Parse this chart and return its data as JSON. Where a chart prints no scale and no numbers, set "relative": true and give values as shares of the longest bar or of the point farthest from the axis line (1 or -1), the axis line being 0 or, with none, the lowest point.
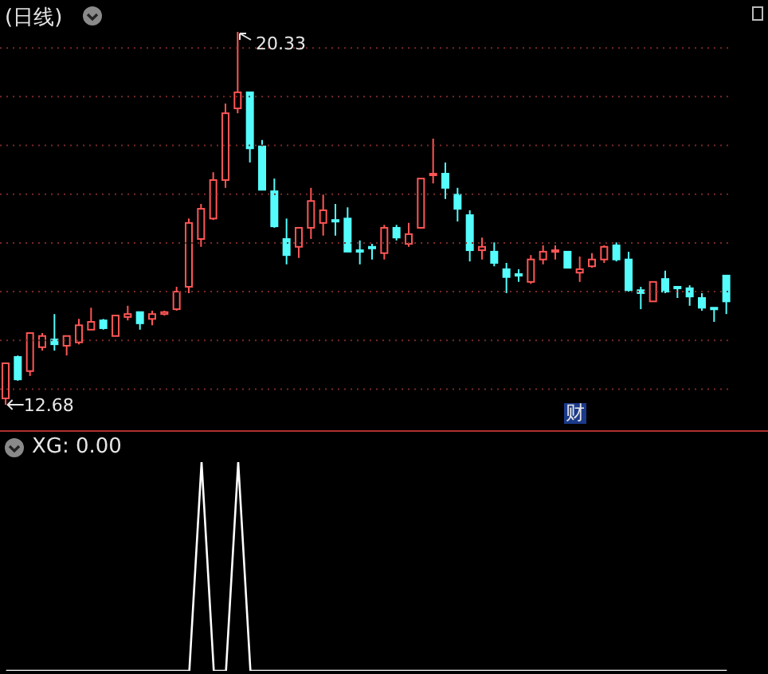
{
  "chart_data": [
    {
      "type": "candlestick",
      "title": "(日线)",
      "categories": [
        null,
        null,
        null,
        null,
        null,
        null,
        null,
        null,
        null,
        null,
        null,
        null,
        null,
        null,
        null,
        null,
        null,
        null,
        null,
        null,
        null,
        null,
        null,
        null,
        null,
        null,
        null,
        null,
        null,
        null,
        null,
        null,
        null,
        null,
        null,
        null,
        null,
        null,
        null,
        null,
        null,
        null,
        null,
        null,
        null,
        null,
        null,
        null,
        null,
        null,
        null,
        null,
        null,
        null,
        null,
        null,
        null,
        null,
        null,
        null
      ],
      "ohlc": [
        [
          12.81,
          13.53,
          12.68,
          13.53
        ],
        [
          13.66,
          13.69,
          13.17,
          13.2
        ],
        [
          13.37,
          14.15,
          13.27,
          14.15
        ],
        [
          13.86,
          14.15,
          13.79,
          14.09
        ],
        [
          14.02,
          14.54,
          13.79,
          13.92
        ],
        [
          13.89,
          14.09,
          13.69,
          14.09
        ],
        [
          13.96,
          14.44,
          13.92,
          14.31
        ],
        [
          14.22,
          14.67,
          14.22,
          14.38
        ],
        [
          14.41,
          14.44,
          14.22,
          14.25
        ],
        [
          14.09,
          14.51,
          14.09,
          14.51
        ],
        [
          14.48,
          14.71,
          14.41,
          14.54
        ],
        [
          14.58,
          14.58,
          14.22,
          14.35
        ],
        [
          14.44,
          14.61,
          14.31,
          14.54
        ],
        [
          14.54,
          14.61,
          14.51,
          14.58
        ],
        [
          14.64,
          15.1,
          14.61,
          15.0
        ],
        [
          15.1,
          16.5,
          14.97,
          16.41
        ],
        [
          16.08,
          16.8,
          15.92,
          16.7
        ],
        [
          16.5,
          17.45,
          16.47,
          17.29
        ],
        [
          17.29,
          18.86,
          17.13,
          18.66
        ],
        [
          18.76,
          20.33,
          18.66,
          19.09
        ],
        [
          19.09,
          19.09,
          17.65,
          17.94
        ],
        [
          17.98,
          18.11,
          17.09,
          17.09
        ],
        [
          17.06,
          17.32,
          16.31,
          16.34
        ],
        [
          16.08,
          16.5,
          15.56,
          15.75
        ],
        [
          15.92,
          16.31,
          15.69,
          16.31
        ],
        [
          16.31,
          17.13,
          16.08,
          16.86
        ],
        [
          16.41,
          16.99,
          16.15,
          16.67
        ],
        [
          16.47,
          16.8,
          16.15,
          16.44
        ],
        [
          16.5,
          16.73,
          15.82,
          15.82
        ],
        [
          15.85,
          16.05,
          15.56,
          15.82
        ],
        [
          15.92,
          15.98,
          15.66,
          15.89
        ],
        [
          15.79,
          16.37,
          15.66,
          16.31
        ],
        [
          16.31,
          16.37,
          16.05,
          16.11
        ],
        [
          15.98,
          16.41,
          15.92,
          16.18
        ],
        [
          16.31,
          17.32,
          16.31,
          17.32
        ],
        [
          17.39,
          18.14,
          17.22,
          17.42
        ],
        [
          17.42,
          17.65,
          16.9,
          17.13
        ],
        [
          16.99,
          17.13,
          16.44,
          16.7
        ],
        [
          16.57,
          16.67,
          15.62,
          15.85
        ],
        [
          15.85,
          16.11,
          15.66,
          15.92
        ],
        [
          15.82,
          16.01,
          15.52,
          15.59
        ],
        [
          15.46,
          15.59,
          14.97,
          15.3
        ],
        [
          15.36,
          15.46,
          15.2,
          15.33
        ],
        [
          15.2,
          15.75,
          15.16,
          15.66
        ],
        [
          15.66,
          15.95,
          15.56,
          15.82
        ],
        [
          15.82,
          15.95,
          15.66,
          15.85
        ],
        [
          15.82,
          15.82,
          15.49,
          15.49
        ],
        [
          15.39,
          15.72,
          15.2,
          15.46
        ],
        [
          15.52,
          15.79,
          15.49,
          15.66
        ],
        [
          15.66,
          15.95,
          15.59,
          15.92
        ],
        [
          15.95,
          16.01,
          15.62,
          15.66
        ],
        [
          15.66,
          15.82,
          15.0,
          15.03
        ],
        [
          15.03,
          15.1,
          14.64,
          14.97
        ],
        [
          14.8,
          15.2,
          14.8,
          15.2
        ],
        [
          15.26,
          15.43,
          14.97,
          15.0
        ],
        [
          15.1,
          15.1,
          14.87,
          15.07
        ],
        [
          15.07,
          15.13,
          14.71,
          14.9
        ],
        [
          14.87,
          14.97,
          14.61,
          14.67
        ],
        [
          14.67,
          14.67,
          14.38,
          14.64
        ],
        [
          15.33,
          15.33,
          14.54,
          14.8
        ]
      ],
      "colors": [
        "#ff5555",
        "#54fcfc",
        "#ff5555",
        "#ff5555",
        "#54fcfc",
        "#ff5555",
        "#ff5555",
        "#ff5555",
        "#54fcfc",
        "#ff5555",
        "#ff5555",
        "#54fcfc",
        "#ff5555",
        "#ff5555",
        "#ff5555",
        "#ff5555",
        "#ff5555",
        "#ff5555",
        "#ff5555",
        "#ff5555",
        "#54fcfc",
        "#54fcfc",
        "#54fcfc",
        "#54fcfc",
        "#ff5555",
        "#ff5555",
        "#ff5555",
        "#54fcfc",
        "#54fcfc",
        "#54fcfc",
        "#54fcfc",
        "#ff5555",
        "#54fcfc",
        "#ff5555",
        "#ff5555",
        "#ff5555",
        "#54fcfc",
        "#54fcfc",
        "#54fcfc",
        "#ff5555",
        "#54fcfc",
        "#54fcfc",
        "#54fcfc",
        "#ff5555",
        "#ff5555",
        "#ff5555",
        "#54fcfc",
        "#ff5555",
        "#ff5555",
        "#ff5555",
        "#54fcfc",
        "#54fcfc",
        "#54fcfc",
        "#ff5555",
        "#54fcfc",
        "#54fcfc",
        "#54fcfc",
        "#54fcfc",
        "#54fcfc",
        "#54fcfc"
      ],
      "yticks": [
        {
          "value": 13,
          "label": null
        },
        {
          "value": 14,
          "label": null
        },
        {
          "value": 15,
          "label": null
        },
        {
          "value": 16,
          "label": null
        },
        {
          "value": 17,
          "label": null
        },
        {
          "value": 18,
          "label": null
        },
        {
          "value": 19,
          "label": null
        },
        {
          "value": 20,
          "label": null
        }
      ],
      "grid": "y",
      "annotations": [
        "20.33",
        "12.68",
        "财"
      ]
    },
    {
      "type": "line",
      "title": "XG: 0.00",
      "categories": [
        null,
        null,
        null,
        null,
        null,
        null,
        null,
        null,
        null,
        null,
        null,
        null,
        null,
        null,
        null,
        null,
        null,
        null,
        null,
        null,
        null,
        null,
        null,
        null,
        null,
        null,
        null,
        null,
        null,
        null,
        null,
        null,
        null,
        null,
        null,
        null,
        null,
        null,
        null,
        null,
        null,
        null,
        null,
        null,
        null,
        null,
        null,
        null,
        null,
        null,
        null,
        null,
        null,
        null,
        null,
        null,
        null,
        null,
        null,
        null
      ],
      "series": [
        {
          "color": "#ffffff",
          "values": [
            0,
            0,
            0,
            0,
            0,
            0,
            0,
            0,
            0,
            0,
            0,
            0,
            0,
            0,
            0,
            0,
            1,
            0,
            0,
            1,
            0,
            0,
            0,
            0,
            0,
            0,
            0,
            0,
            0,
            0,
            0,
            0,
            0,
            0,
            0,
            0,
            0,
            0,
            0,
            0,
            0,
            0,
            0,
            0,
            0,
            0,
            0,
            0,
            0,
            0,
            0,
            0,
            0,
            0,
            0,
            0,
            0,
            0,
            0,
            0
          ]
        }
      ],
      "relative": true,
      "marker": "none"
    }
  ]
}
